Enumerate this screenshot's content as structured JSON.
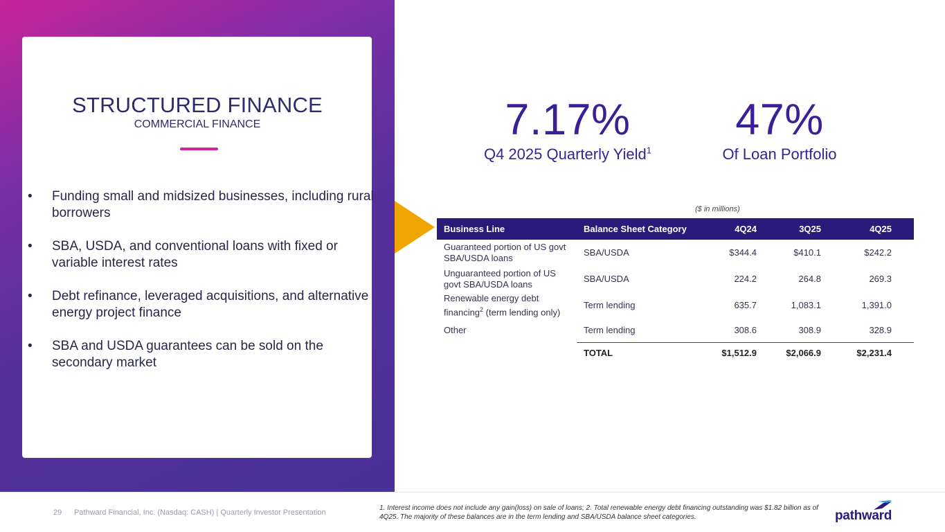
{
  "card": {
    "title": "STRUCTURED FINANCE",
    "subtitle": "COMMERCIAL FINANCE",
    "bullets": [
      "Funding small and midsized businesses, including rural borrowers",
      "SBA, USDA, and conventional loans with fixed or variable interest rates",
      "Debt refinance, leveraged acquisitions, and alternative energy project finance",
      "SBA and USDA guarantees can be sold on the secondary market"
    ],
    "bullet_symbol": "•"
  },
  "metrics": {
    "yield_value": "7.17%",
    "yield_label": "Q4 2025 Quarterly Yield",
    "yield_sup": "1",
    "portfolio_value": "47%",
    "portfolio_label": "Of Loan Portfolio"
  },
  "table": {
    "units_note": "($ in millions)",
    "headers": [
      "Business Line",
      "Balance Sheet Category",
      "4Q24",
      "3Q25",
      "4Q25"
    ],
    "rows": [
      {
        "line_a": "Guaranteed portion of US govt",
        "line_b": "SBA/USDA loans",
        "category": "SBA/USDA",
        "q4_24": "$344.4",
        "q3_25": "$410.1",
        "q4_25": "$242.2"
      },
      {
        "line_a": "Unguaranteed portion of US",
        "line_b": "govt SBA/USDA loans",
        "category": "SBA/USDA",
        "q4_24": "224.2",
        "q3_25": "264.8",
        "q4_25": "269.3"
      },
      {
        "line_a": "Renewable energy debt",
        "line_b_pre": "financing",
        "line_b_sup": "2",
        "line_b_post": " (term lending only)",
        "category": "Term lending",
        "q4_24": "635.7",
        "q3_25": "1,083.1",
        "q4_25": "1,391.0"
      },
      {
        "line_a": "Other",
        "category": "Term lending",
        "q4_24": "308.6",
        "q3_25": "308.9",
        "q4_25": "328.9"
      }
    ],
    "total": {
      "label": "TOTAL",
      "q4_24": "$1,512.9",
      "q3_25": "$2,066.9",
      "q4_25": "$2,231.4"
    }
  },
  "footer": {
    "page_number": "29",
    "text": "Pathward Financial, Inc. (Nasdaq: CASH) | Quarterly Investor Presentation",
    "footnote": "1. Interest income does not include any gain(loss) on sale of loans; 2. Total renewable energy debt financing outstanding was $1.82 billion as of 4Q25. The majority of these balances are in the term lending and SBA/USDA balance sheet categories.",
    "logo_text": "pathward"
  },
  "colors": {
    "brand_purple": "#3b1f96",
    "table_header": "#2a1b7a",
    "accent_pink": "#d6219c",
    "arrow_orange": "#f0a500"
  }
}
